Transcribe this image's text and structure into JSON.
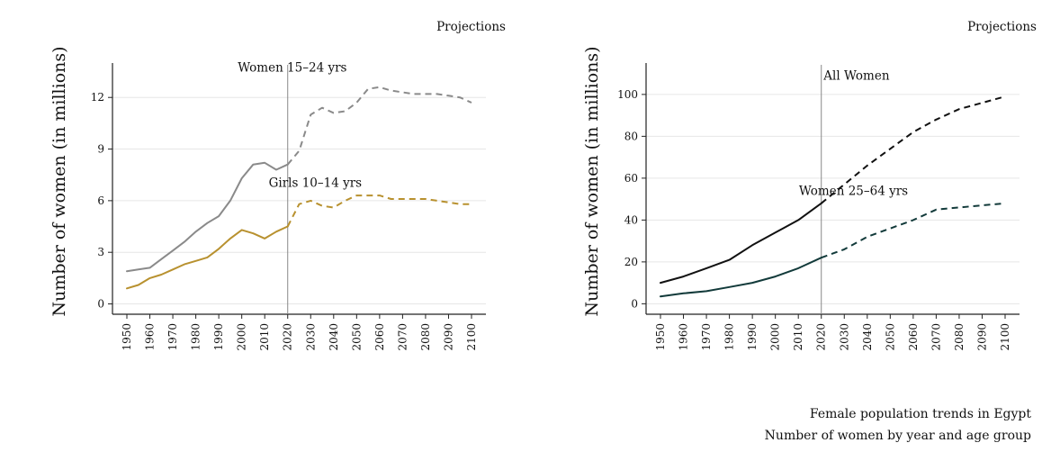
{
  "figure": {
    "caption_title": "Female population trends in Egypt",
    "caption_subtitle": "Number of women by year and age group"
  },
  "chart_data": [
    {
      "type": "line",
      "ylabel": "Number of women (in millions)",
      "xlabel": "",
      "projections_label": "Projections",
      "divider_year": 2020,
      "xlim": [
        1950,
        2100
      ],
      "ylim": [
        -0.6,
        14
      ],
      "x_ticks": [
        1950,
        1960,
        1970,
        1980,
        1990,
        2000,
        2010,
        2020,
        2030,
        2040,
        2050,
        2060,
        2070,
        2080,
        2090,
        2100
      ],
      "y_ticks": [
        0,
        3,
        6,
        9,
        12
      ],
      "grid": true,
      "series": [
        {
          "name": "Women 15–24 yrs",
          "color": "#8a8a8a",
          "observed": {
            "x": [
              1950,
              1955,
              1960,
              1965,
              1970,
              1975,
              1980,
              1985,
              1990,
              1995,
              2000,
              2005,
              2010,
              2015,
              2020
            ],
            "y": [
              1.9,
              2.0,
              2.1,
              2.6,
              3.1,
              3.6,
              4.2,
              4.7,
              5.1,
              6.0,
              7.3,
              8.1,
              8.2,
              7.8,
              8.1
            ]
          },
          "projected": {
            "x": [
              2020,
              2025,
              2030,
              2035,
              2040,
              2045,
              2050,
              2055,
              2060,
              2065,
              2070,
              2075,
              2080,
              2085,
              2090,
              2095,
              2100
            ],
            "y": [
              8.1,
              8.9,
              11.0,
              11.4,
              11.1,
              11.2,
              11.7,
              12.5,
              12.6,
              12.4,
              12.3,
              12.2,
              12.2,
              12.2,
              12.1,
              12.0,
              11.7
            ]
          }
        },
        {
          "name": "Girls 10–14 yrs",
          "color": "#b8912f",
          "observed": {
            "x": [
              1950,
              1955,
              1960,
              1965,
              1970,
              1975,
              1980,
              1985,
              1990,
              1995,
              2000,
              2005,
              2010,
              2015,
              2020
            ],
            "y": [
              0.9,
              1.1,
              1.5,
              1.7,
              2.0,
              2.3,
              2.5,
              2.7,
              3.2,
              3.8,
              4.3,
              4.1,
              3.8,
              4.2,
              4.5
            ]
          },
          "projected": {
            "x": [
              2020,
              2025,
              2030,
              2035,
              2040,
              2045,
              2050,
              2055,
              2060,
              2065,
              2070,
              2075,
              2080,
              2085,
              2090,
              2095,
              2100
            ],
            "y": [
              4.5,
              5.8,
              6.0,
              5.7,
              5.6,
              6.0,
              6.3,
              6.3,
              6.3,
              6.1,
              6.1,
              6.1,
              6.1,
              6.0,
              5.9,
              5.8,
              5.8
            ]
          }
        }
      ],
      "annotations": [
        {
          "text": "Women 15–24 yrs",
          "x": 2022,
          "y": 13.5,
          "anchor": "middle"
        },
        {
          "text": "Girls 10–14 yrs",
          "x": 2032,
          "y": 6.8,
          "anchor": "middle"
        }
      ]
    },
    {
      "type": "line",
      "ylabel": "Number of women (in millions)",
      "xlabel": "",
      "projections_label": "Projections",
      "divider_year": 2020,
      "xlim": [
        1950,
        2100
      ],
      "ylim": [
        -5,
        115
      ],
      "x_ticks": [
        1950,
        1960,
        1970,
        1980,
        1990,
        2000,
        2010,
        2020,
        2030,
        2040,
        2050,
        2060,
        2070,
        2080,
        2090,
        2100
      ],
      "y_ticks": [
        0,
        20,
        40,
        60,
        80,
        100
      ],
      "grid": true,
      "series": [
        {
          "name": "All Women",
          "color": "#111111",
          "observed": {
            "x": [
              1950,
              1960,
              1970,
              1980,
              1990,
              2000,
              2010,
              2020
            ],
            "y": [
              10,
              13,
              17,
              21,
              28,
              34,
              40,
              48
            ]
          },
          "projected": {
            "x": [
              2020,
              2030,
              2040,
              2050,
              2060,
              2070,
              2080,
              2090,
              2100
            ],
            "y": [
              48,
              57,
              66,
              74,
              82,
              88,
              93,
              96,
              99
            ]
          }
        },
        {
          "name": "Women 25–64 yrs",
          "color": "#123a3a",
          "observed": {
            "x": [
              1950,
              1960,
              1970,
              1980,
              1990,
              2000,
              2010,
              2020
            ],
            "y": [
              3.5,
              5,
              6,
              8,
              10,
              13,
              17,
              22
            ]
          },
          "projected": {
            "x": [
              2020,
              2030,
              2040,
              2050,
              2060,
              2070,
              2080,
              2090,
              2100
            ],
            "y": [
              22,
              26,
              32,
              36,
              40,
              45,
              46,
              47,
              48
            ]
          }
        }
      ],
      "annotations": [
        {
          "text": "All Women",
          "x": 2021,
          "y": 107,
          "anchor": "start"
        },
        {
          "text": "Women 25–64 yrs",
          "x": 2034,
          "y": 52,
          "anchor": "middle"
        }
      ]
    }
  ]
}
